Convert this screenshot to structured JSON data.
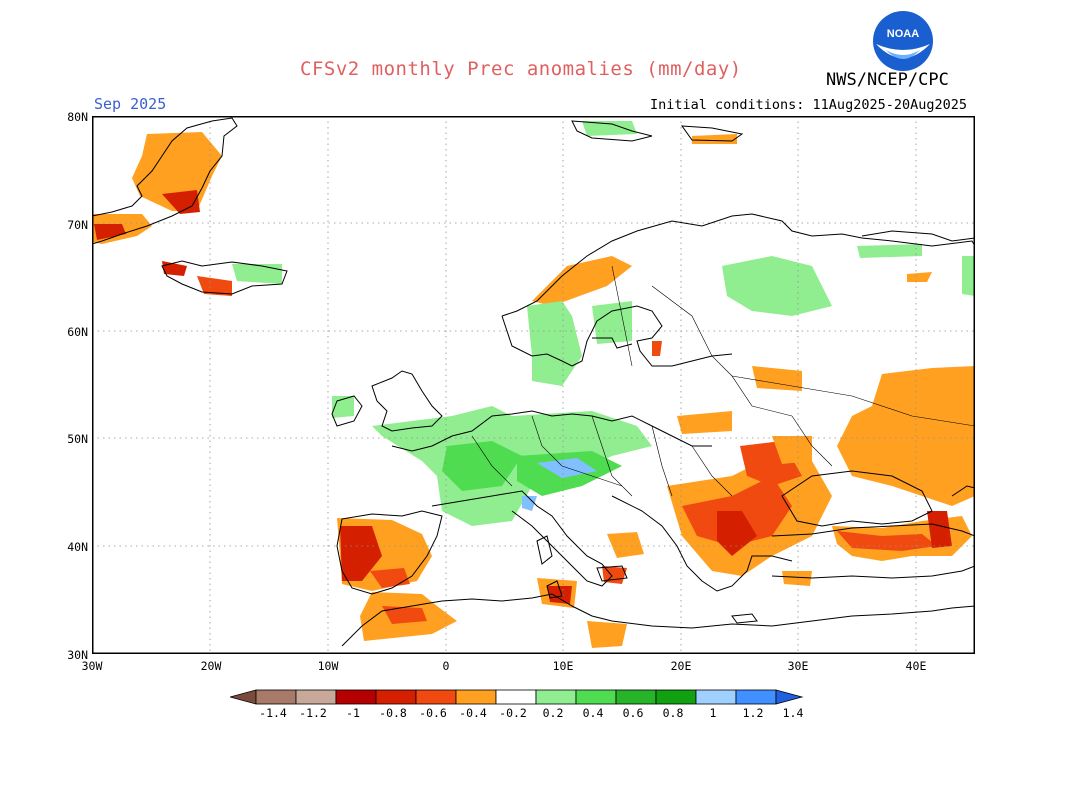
{
  "title": "CFSv2 monthly Prec anomalies (mm/day)",
  "valid_month": "Sep 2025",
  "initial_conditions": "Initial conditions: 11Aug2025-20Aug2025",
  "agency": "NWS/NCEP/CPC",
  "logo_text": "NOAA",
  "lat_labels": [
    "80N",
    "70N",
    "60N",
    "50N",
    "40N",
    "30N"
  ],
  "lon_labels": [
    "30W",
    "20W",
    "10W",
    "0",
    "10E",
    "20E",
    "30E",
    "40E"
  ],
  "colorbar_labels": [
    "-1.4",
    "-1.2",
    "-1",
    "-0.8",
    "-0.6",
    "-0.4",
    "-0.2",
    "0.2",
    "0.4",
    "0.6",
    "0.8",
    "1",
    "1.2",
    "1.4"
  ],
  "colorbar_colors": [
    "#7a4a3a",
    "#a87a6a",
    "#c8a898",
    "#b40000",
    "#d42000",
    "#f04a10",
    "#ffa020",
    "#ffffff",
    "#90ee90",
    "#50dc50",
    "#28b428",
    "#10a010",
    "#a0d0ff",
    "#4090ff",
    "#2060e0"
  ],
  "colors": {
    "title": "#e06060",
    "valid": "#3a5fd0",
    "dry_weak": "#ffa020",
    "dry_mod": "#f04a10",
    "dry_strong": "#d42000",
    "wet_weak": "#90ee90",
    "wet_mod": "#50dc50",
    "wet_blue": "#80c0ff"
  }
}
